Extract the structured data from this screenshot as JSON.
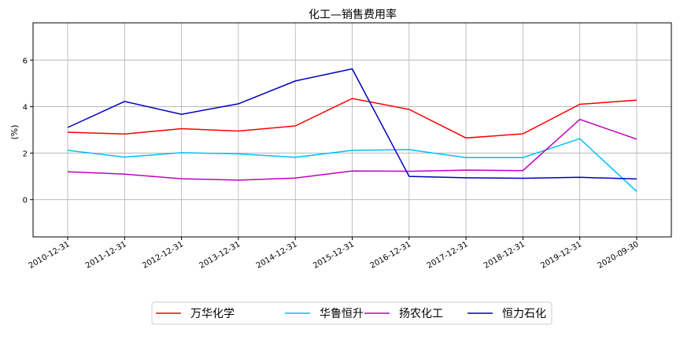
{
  "chart_data": {
    "type": "line",
    "title": "化工—销售费用率",
    "xlabel": "",
    "ylabel": "(%)",
    "categories": [
      "2010-12-31",
      "2011-12-31",
      "2012-12-31",
      "2013-12-31",
      "2014-12-31",
      "2015-12-31",
      "2016-12-31",
      "2017-12-31",
      "2018-12-31",
      "2019-12-31",
      "2020-09-30"
    ],
    "ylim": [
      -1.6,
      7.6
    ],
    "yticks": [
      0,
      2,
      4,
      6
    ],
    "grid": true,
    "legend_position": "bottom-center",
    "series": [
      {
        "name": "万华化学",
        "color": "#ff0000",
        "values": [
          2.9,
          2.82,
          3.05,
          2.95,
          3.17,
          4.35,
          3.88,
          2.65,
          2.83,
          4.1,
          4.28
        ]
      },
      {
        "name": "华鲁恒升",
        "color": "#00bfff",
        "values": [
          2.12,
          1.83,
          2.02,
          1.97,
          1.82,
          2.12,
          2.15,
          1.81,
          1.81,
          2.62,
          0.35
        ]
      },
      {
        "name": "扬农化工",
        "color": "#bf00bf",
        "values": [
          1.2,
          1.1,
          0.9,
          0.84,
          0.93,
          1.23,
          1.22,
          1.27,
          1.25,
          3.45,
          2.6
        ]
      },
      {
        "name": "恒力石化",
        "color": "#0000bf",
        "values": [
          3.1,
          4.22,
          3.67,
          4.12,
          5.1,
          5.62,
          1.0,
          0.94,
          0.92,
          0.96,
          0.89
        ]
      }
    ]
  }
}
